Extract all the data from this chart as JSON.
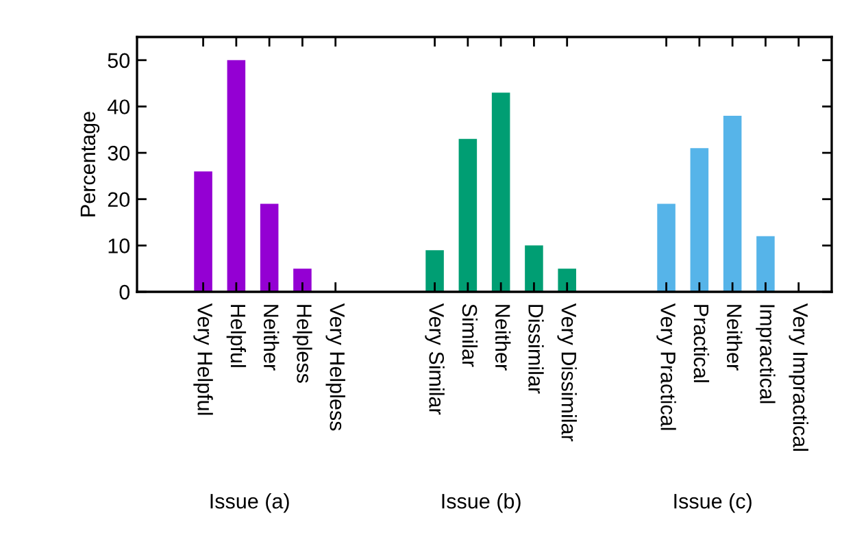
{
  "chart_data": {
    "type": "bar",
    "ylabel": "Percentage",
    "categories": [
      "Very Helpful",
      "Helpful",
      "Neither",
      "Helpless",
      "Very Helpless",
      null,
      null,
      "Very Similar",
      "Similar",
      "Neither",
      "Dissimilar",
      "Very Dissimilar",
      null,
      null,
      "Very Practical",
      "Practical",
      "Neither",
      "Impractical",
      "Very Impractical"
    ],
    "values": [
      26,
      50,
      19,
      5,
      0,
      null,
      null,
      9,
      33,
      43,
      10,
      5,
      null,
      null,
      19,
      31,
      38,
      12,
      0
    ],
    "colors": [
      "#9400d3",
      "#9400d3",
      "#9400d3",
      "#9400d3",
      "#9400d3",
      null,
      null,
      "#009e73",
      "#009e73",
      "#009e73",
      "#009e73",
      "#009e73",
      null,
      null,
      "#56b4e9",
      "#56b4e9",
      "#56b4e9",
      "#56b4e9",
      "#56b4e9"
    ],
    "ylim": [
      0,
      55
    ],
    "yticks": [
      0,
      10,
      20,
      30,
      40,
      50
    ],
    "grid": false,
    "annotations": [
      "Issue (a)",
      "Issue (b)",
      "Issue (c)"
    ]
  }
}
